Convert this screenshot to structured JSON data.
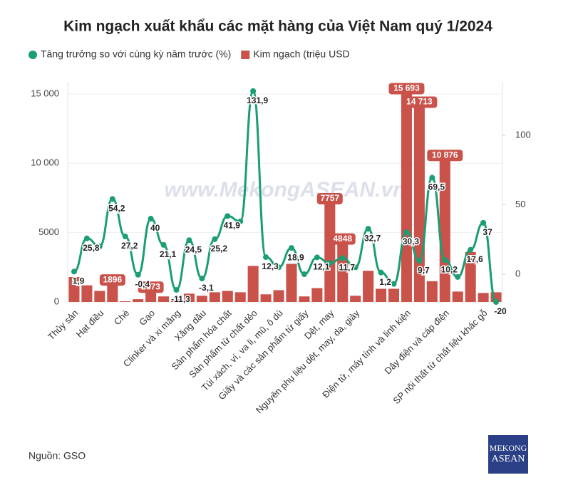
{
  "chart_data": {
    "type": "combo",
    "title": "Kim ngạch xuất khẩu các mặt hàng của Việt Nam quý 1/2024",
    "watermark": "www.MekongASEAN.vn",
    "source": "Nguồn: GSO",
    "logo": [
      "MEKONG",
      "ASEAN"
    ],
    "categories": [
      "Thủy sản",
      null,
      "Hạt điều",
      null,
      "Chè",
      null,
      "Gạo",
      null,
      "Clinker và xi măng",
      null,
      "Xăng dầu",
      null,
      "Sản phẩm hóa chất",
      null,
      "Sản phẩm từ chất dẻo",
      null,
      "Túi xách, ví, va li, mũ, ô dù",
      null,
      "Giấy và các sản phẩm từ giấy",
      null,
      "Dệt, may",
      null,
      "Nguyên phụ liệu dệt, may, da, giày",
      null,
      null,
      null,
      "Điện tử, máy tính và linh kiện",
      null,
      null,
      "Dây điện và cáp điện",
      null,
      null,
      "SP nội thất từ chất liệu khác gỗ",
      null
    ],
    "series": [
      {
        "name": "Tăng trưởng so với cùng kỳ năm trước (%)",
        "type": "line",
        "axis": "y2",
        "color": "#1a9e72",
        "values": [
          1.9,
          25.8,
          20,
          54.2,
          27.2,
          -0.4,
          40,
          21.1,
          -11.3,
          24.5,
          -3.1,
          25.2,
          41.9,
          38,
          131.9,
          12.3,
          5,
          18.9,
          0,
          12.1,
          8,
          11.7,
          5,
          32.7,
          1.2,
          -7,
          30.3,
          9.7,
          69.5,
          10.2,
          -2,
          17.6,
          37,
          -20
        ],
        "value_labels": [
          "1,9",
          "25,8",
          null,
          "54,2",
          "27,2",
          "-0,4",
          "40",
          "21,1",
          "-11,3",
          "24,5",
          "-3,1",
          "25,2",
          "41,9",
          null,
          "131,9",
          "12,3",
          null,
          "18,9",
          null,
          "12,1",
          null,
          "11,7",
          null,
          "32,7",
          "1,2",
          null,
          "30,3",
          "9,7",
          "69,5",
          "10,2",
          null,
          "17,6",
          "37",
          "-20"
        ]
      },
      {
        "name": "Kim ngạch (triệu USD",
        "type": "bar",
        "color": "#c9524b",
        "values": [
          1800,
          1200,
          800,
          1896,
          50,
          200,
          1373,
          400,
          250,
          600,
          450,
          700,
          800,
          700,
          2600,
          550,
          850,
          2750,
          400,
          1000,
          7757,
          4848,
          450,
          2250,
          950,
          950,
          15693,
          14713,
          1500,
          10876,
          750,
          3600,
          650,
          700
        ],
        "value_labels": [
          null,
          null,
          null,
          "1896",
          null,
          null,
          "1373",
          null,
          null,
          null,
          null,
          null,
          null,
          null,
          null,
          null,
          null,
          null,
          null,
          null,
          "7757",
          "4848",
          null,
          null,
          null,
          null,
          "15 693",
          "14 713",
          null,
          "10 876",
          null,
          null,
          null,
          null
        ]
      }
    ],
    "ylim": [
      0,
      15870
    ],
    "yticks": [
      0,
      5000,
      {
        "value": 10000,
        "label": "10 000"
      },
      {
        "value": 15000,
        "label": "15 000"
      }
    ],
    "y2lim": [
      -20,
      138.5
    ],
    "y2ticks": [
      0,
      50,
      100
    ],
    "grid": true
  }
}
